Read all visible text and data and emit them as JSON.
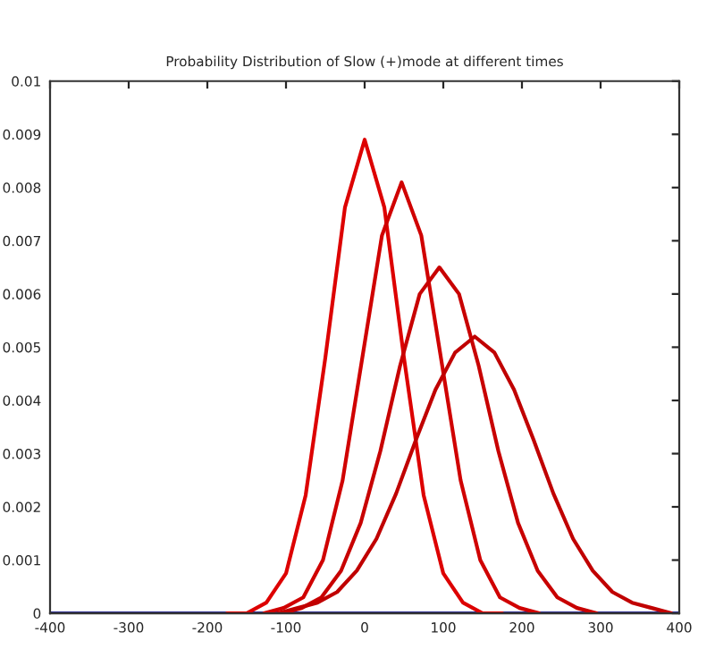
{
  "chart_data": {
    "type": "line",
    "title": "Probability Distribution of Slow (+)mode at different times",
    "xlim": [
      -400,
      400
    ],
    "xticks": [
      -400,
      -300,
      -200,
      -100,
      0,
      100,
      200,
      300,
      400
    ],
    "ylim": [
      0,
      0.01
    ],
    "yticks": [
      0,
      0.001,
      0.002,
      0.003,
      0.004,
      0.005,
      0.006,
      0.007,
      0.008,
      0.009,
      0.01
    ],
    "grid": false,
    "legend": false,
    "marker": "none",
    "line_style": "solid",
    "series": [
      {
        "color": "#2a2a8c",
        "x": [
          -400,
          400
        ],
        "values": [
          0,
          0
        ]
      },
      {
        "color": "#dd0000",
        "x": [
          -175,
          -150,
          -125,
          -100,
          -75,
          -50,
          -25,
          0,
          25,
          50,
          75,
          100,
          125,
          150,
          175
        ],
        "values": [
          0,
          0,
          0.0002,
          0.00075,
          0.00222,
          0.0048,
          0.00763,
          0.0089,
          0.00763,
          0.0048,
          0.00222,
          0.00075,
          0.0002,
          0,
          0
        ]
      },
      {
        "color": "#d00000",
        "x": [
          -128,
          -103,
          -78,
          -53,
          -28,
          -3,
          22,
          47,
          72,
          97,
          122,
          147,
          172,
          197,
          222
        ],
        "values": [
          0,
          0.0001,
          0.0003,
          0.001,
          0.0025,
          0.0048,
          0.0071,
          0.0081,
          0.0071,
          0.0048,
          0.0025,
          0.001,
          0.0003,
          0.0001,
          0
        ]
      },
      {
        "color": "#c80000",
        "x": [
          -105,
          -80,
          -55,
          -30,
          -5,
          20,
          45,
          70,
          95,
          120,
          145,
          170,
          195,
          220,
          245,
          270,
          295
        ],
        "values": [
          0,
          0.0001,
          0.0003,
          0.0008,
          0.0017,
          0.00305,
          0.00465,
          0.006,
          0.0065,
          0.006,
          0.00465,
          0.00305,
          0.0017,
          0.0008,
          0.0003,
          0.0001,
          0
        ]
      },
      {
        "color": "#c00000",
        "x": [
          -110,
          -85,
          -60,
          -35,
          -10,
          15,
          40,
          65,
          90,
          115,
          140,
          165,
          190,
          215,
          240,
          265,
          290,
          315,
          340,
          365,
          390
        ],
        "values": [
          0,
          0.0001,
          0.0002,
          0.0004,
          0.0008,
          0.0014,
          0.00225,
          0.00325,
          0.0042,
          0.0049,
          0.0052,
          0.0049,
          0.0042,
          0.00325,
          0.00225,
          0.0014,
          0.0008,
          0.0004,
          0.0002,
          0.0001,
          0
        ]
      }
    ]
  }
}
